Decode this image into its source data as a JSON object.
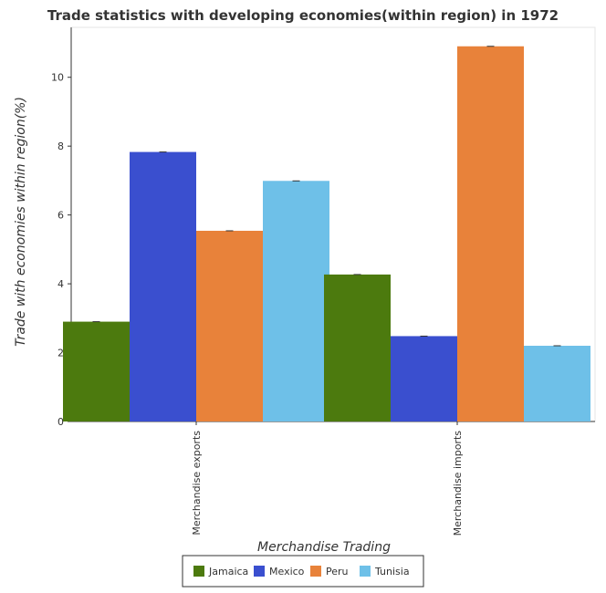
{
  "chart_data": {
    "type": "bar",
    "title": "Trade statistics with developing economies(within region) in 1972",
    "xlabel": "Merchandise Trading",
    "ylabel": "Trade with economies within region(%)",
    "categories": [
      "Merchandise exports",
      "Merchandise imports"
    ],
    "series": [
      {
        "name": "Jamaica",
        "color": "#4c7a0e",
        "values": [
          2.9,
          4.27
        ]
      },
      {
        "name": "Mexico",
        "color": "#3a4fcf",
        "values": [
          7.83,
          2.48
        ]
      },
      {
        "name": "Peru",
        "color": "#e8823a",
        "values": [
          5.54,
          10.9
        ]
      },
      {
        "name": "Tunisia",
        "color": "#6ec0e8",
        "values": [
          6.99,
          2.2
        ]
      }
    ],
    "yticks": [
      0,
      2,
      4,
      6,
      8,
      10
    ],
    "ytick_labels": [
      "0",
      "2",
      "4",
      "6",
      "8",
      "10"
    ],
    "ylim": [
      0,
      11.45
    ],
    "grid": false,
    "legend_position": "bottom-center"
  }
}
